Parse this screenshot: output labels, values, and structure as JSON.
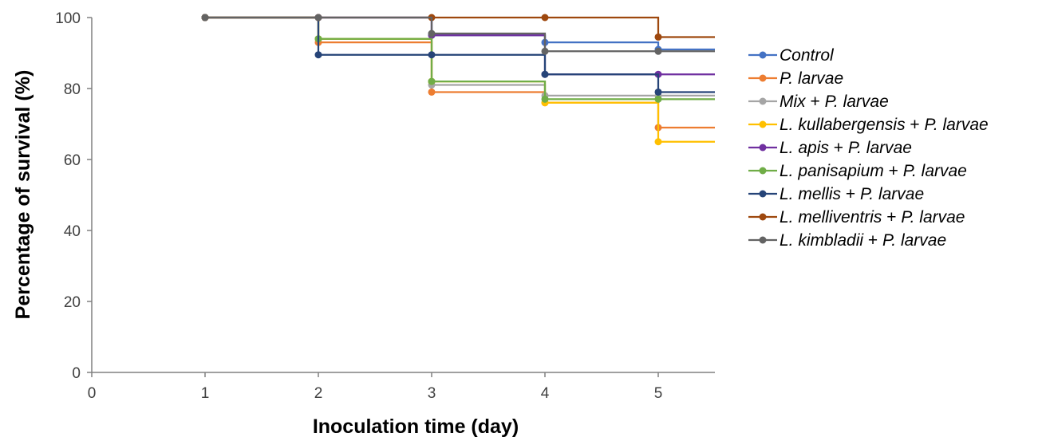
{
  "chart_data": {
    "type": "line",
    "step": true,
    "xlabel": "Inoculation time (day)",
    "ylabel": "Percentage of survival (%)",
    "xlim": [
      0,
      5.5
    ],
    "ylim": [
      0,
      100
    ],
    "x_ticks": [
      "0",
      "1",
      "2",
      "3",
      "4",
      "5"
    ],
    "y_ticks": [
      "0",
      "20",
      "40",
      "60",
      "80",
      "100"
    ],
    "grid": false,
    "legend_position": "right",
    "series": [
      {
        "name": "Control",
        "name_parts": [
          {
            "t": "Control",
            "italic": true
          }
        ],
        "color": "#4472C4",
        "x": [
          1,
          2,
          3,
          4,
          5
        ],
        "y": [
          100,
          100,
          95,
          93,
          91
        ]
      },
      {
        "name": "P. larvae",
        "name_parts": [
          {
            "t": "P. larvae",
            "italic": true
          }
        ],
        "color": "#ED7D31",
        "x": [
          1,
          2,
          3,
          4,
          5
        ],
        "y": [
          100,
          93,
          79,
          76,
          69
        ]
      },
      {
        "name": "Mix + P. larvae",
        "name_parts": [
          {
            "t": "Mix",
            "italic": true
          },
          {
            "t": " + ",
            "italic": false
          },
          {
            "t": "P. larvae",
            "italic": true
          }
        ],
        "color": "#A5A5A5",
        "x": [
          1,
          2,
          3,
          4,
          5
        ],
        "y": [
          100,
          94,
          81,
          78,
          78
        ]
      },
      {
        "name": "L. kullabergensis + P. larvae",
        "name_parts": [
          {
            "t": "L. kullabergensis",
            "italic": true
          },
          {
            "t": " + ",
            "italic": false
          },
          {
            "t": "P. larvae",
            "italic": true
          }
        ],
        "color": "#FFC000",
        "x": [
          1,
          2,
          3,
          4,
          5
        ],
        "y": [
          100,
          94,
          82,
          76,
          65
        ]
      },
      {
        "name": "L. apis + P. larvae",
        "name_parts": [
          {
            "t": "L. apis",
            "italic": true
          },
          {
            "t": " + ",
            "italic": false
          },
          {
            "t": "P. larvae",
            "italic": true
          }
        ],
        "color": "#7030A0",
        "x": [
          1,
          2,
          3,
          4,
          5
        ],
        "y": [
          100,
          100,
          95,
          84,
          84
        ]
      },
      {
        "name": "L. panisapium + P. larvae",
        "name_parts": [
          {
            "t": "L. panisapium",
            "italic": true
          },
          {
            "t": " + ",
            "italic": false
          },
          {
            "t": "P. larvae",
            "italic": true
          }
        ],
        "color": "#70AD47",
        "x": [
          1,
          2,
          3,
          4,
          5
        ],
        "y": [
          100,
          94,
          82,
          77,
          77
        ]
      },
      {
        "name": "L. mellis + P. larvae",
        "name_parts": [
          {
            "t": "L. mellis",
            "italic": true
          },
          {
            "t": " + ",
            "italic": false
          },
          {
            "t": "P. larvae",
            "italic": true
          }
        ],
        "color": "#264478",
        "x": [
          1,
          2,
          3,
          4,
          5
        ],
        "y": [
          100,
          89.5,
          89.5,
          84,
          79
        ]
      },
      {
        "name": "L. melliventris + P. larvae",
        "name_parts": [
          {
            "t": "L. melliventris",
            "italic": true
          },
          {
            "t": " + ",
            "italic": false
          },
          {
            "t": "P. larvae",
            "italic": true
          }
        ],
        "color": "#9E480E",
        "x": [
          1,
          2,
          3,
          4,
          5
        ],
        "y": [
          100,
          100,
          100,
          100,
          94.5
        ]
      },
      {
        "name": "L. kimbladii + P. larvae",
        "name_parts": [
          {
            "t": "L. kimbladii",
            "italic": true
          },
          {
            "t": " + ",
            "italic": false
          },
          {
            "t": "P. larvae",
            "italic": true
          }
        ],
        "color": "#636363",
        "x": [
          1,
          2,
          3,
          4,
          5
        ],
        "y": [
          100,
          100,
          95.5,
          90.5,
          90.5
        ]
      }
    ]
  }
}
